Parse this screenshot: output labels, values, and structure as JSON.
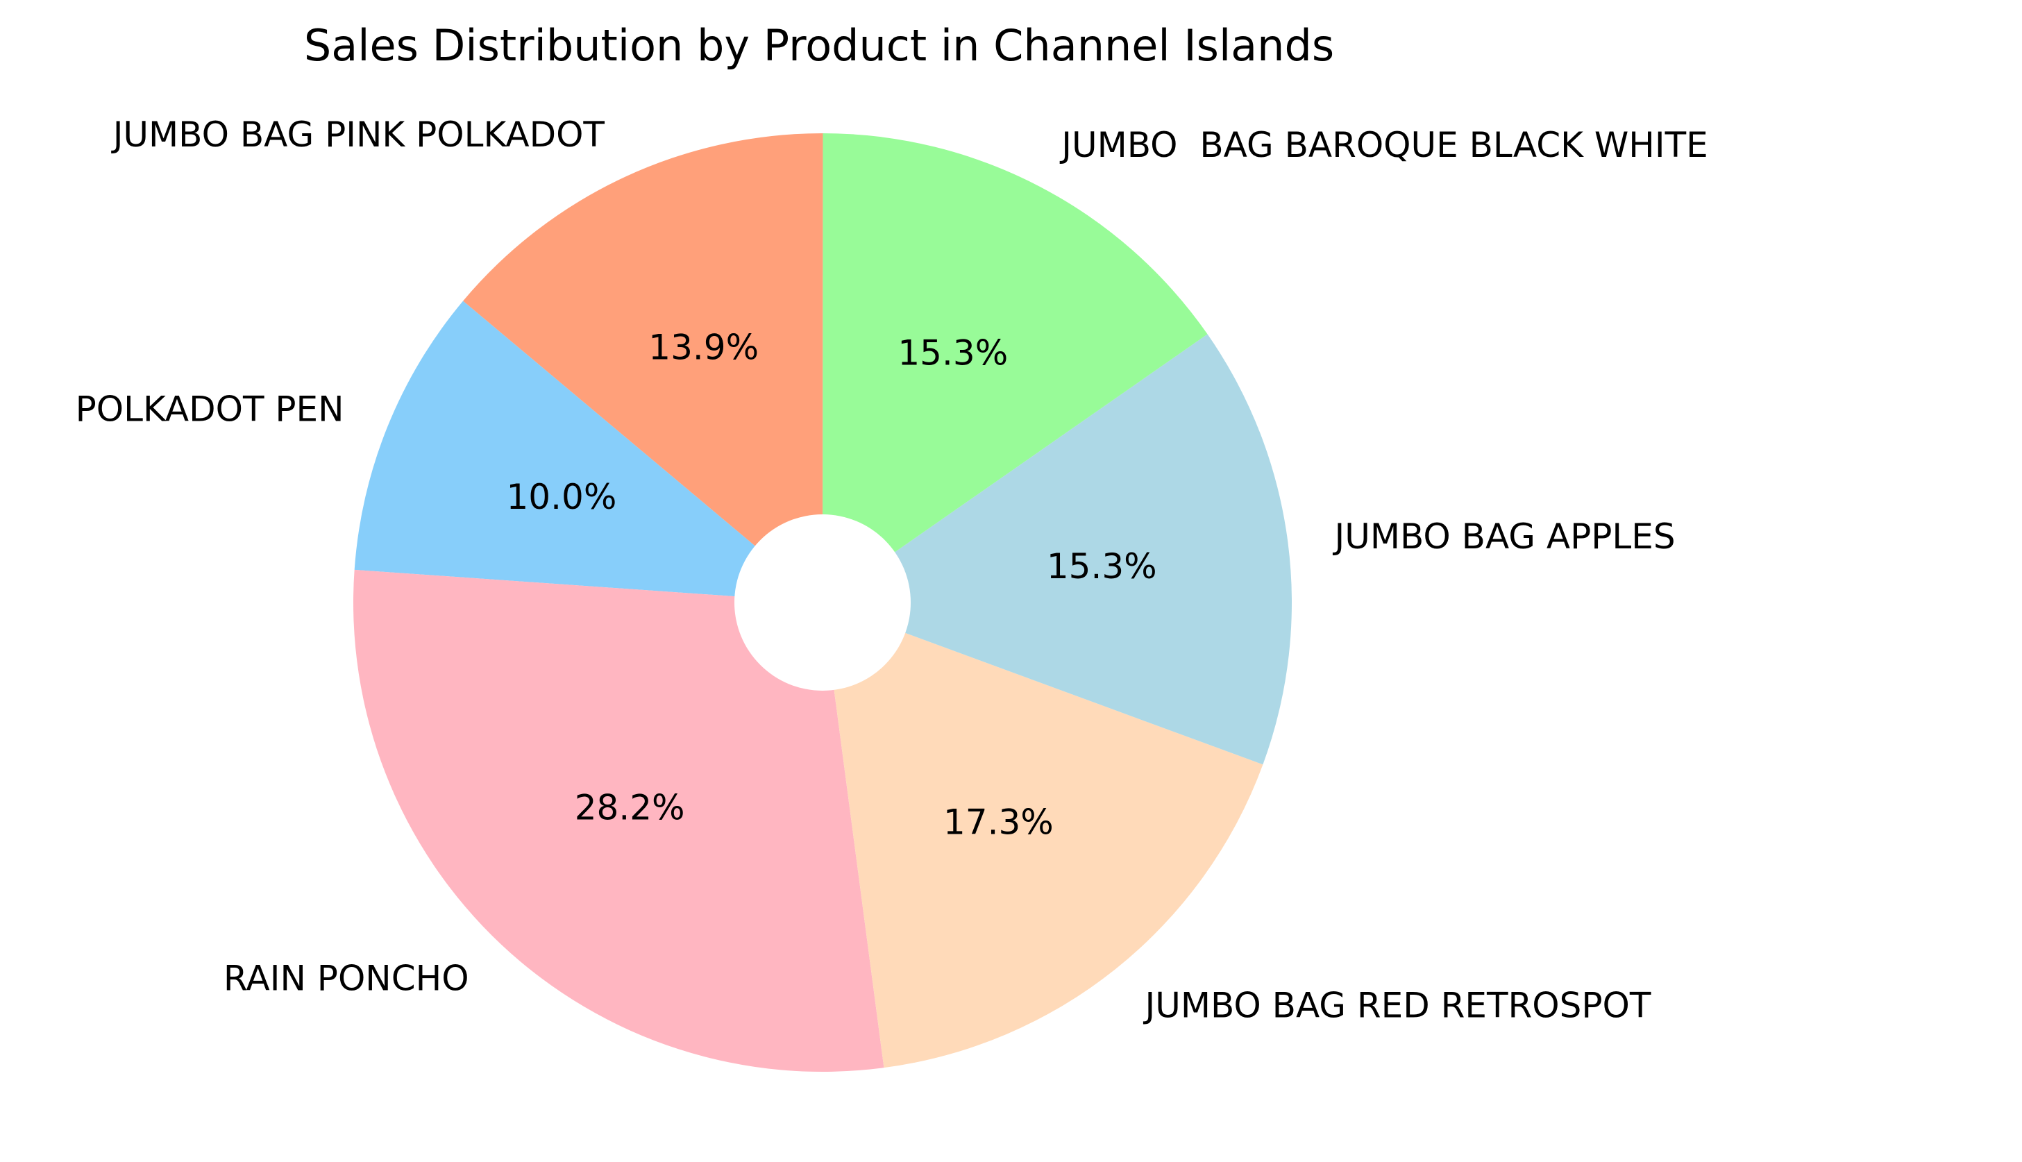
{
  "chart_data": {
    "type": "pie",
    "title": "Sales Distribution by Product in Channel Islands",
    "donut": true,
    "start_angle_deg": 140,
    "direction": "counterclockwise",
    "slices": [
      {
        "label": "POLKADOT PEN",
        "value": 10.0,
        "pct_label": "10.0%",
        "color": "#87CEFA"
      },
      {
        "label": "RAIN PONCHO",
        "value": 28.2,
        "pct_label": "28.2%",
        "color": "#FFB6C1"
      },
      {
        "label": "JUMBO BAG RED RETROSPOT",
        "value": 17.3,
        "pct_label": "17.3%",
        "color": "#FFDAB9"
      },
      {
        "label": "JUMBO BAG APPLES",
        "value": 15.3,
        "pct_label": "15.3%",
        "color": "#ADD8E6"
      },
      {
        "label": "JUMBO  BAG BAROQUE BLACK WHITE",
        "value": 15.3,
        "pct_label": "15.3%",
        "color": "#98FB98"
      },
      {
        "label": "JUMBO BAG PINK POLKADOT",
        "value": 13.9,
        "pct_label": "13.9%",
        "color": "#FFA07A"
      }
    ]
  }
}
